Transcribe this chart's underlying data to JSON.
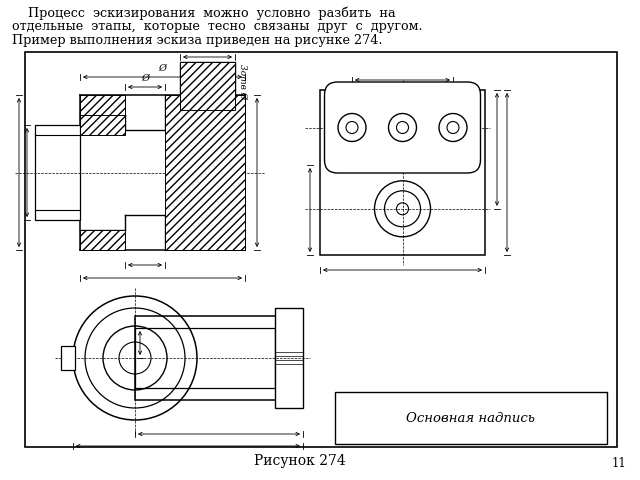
{
  "caption": "Рисунок 274",
  "page_number": "11",
  "osnov_napis": "Основная надпись",
  "bg_color": "#ffffff",
  "text_color": "#000000",
  "header_line1": "    Процесс  эскизирования  можно  условно  разбить  на",
  "header_line2": "отдельные  этапы,  которые  тесно  связаны  друг  с  другом.",
  "header_line3": "Пример выполнения эскиза приведен на рисунке 274."
}
